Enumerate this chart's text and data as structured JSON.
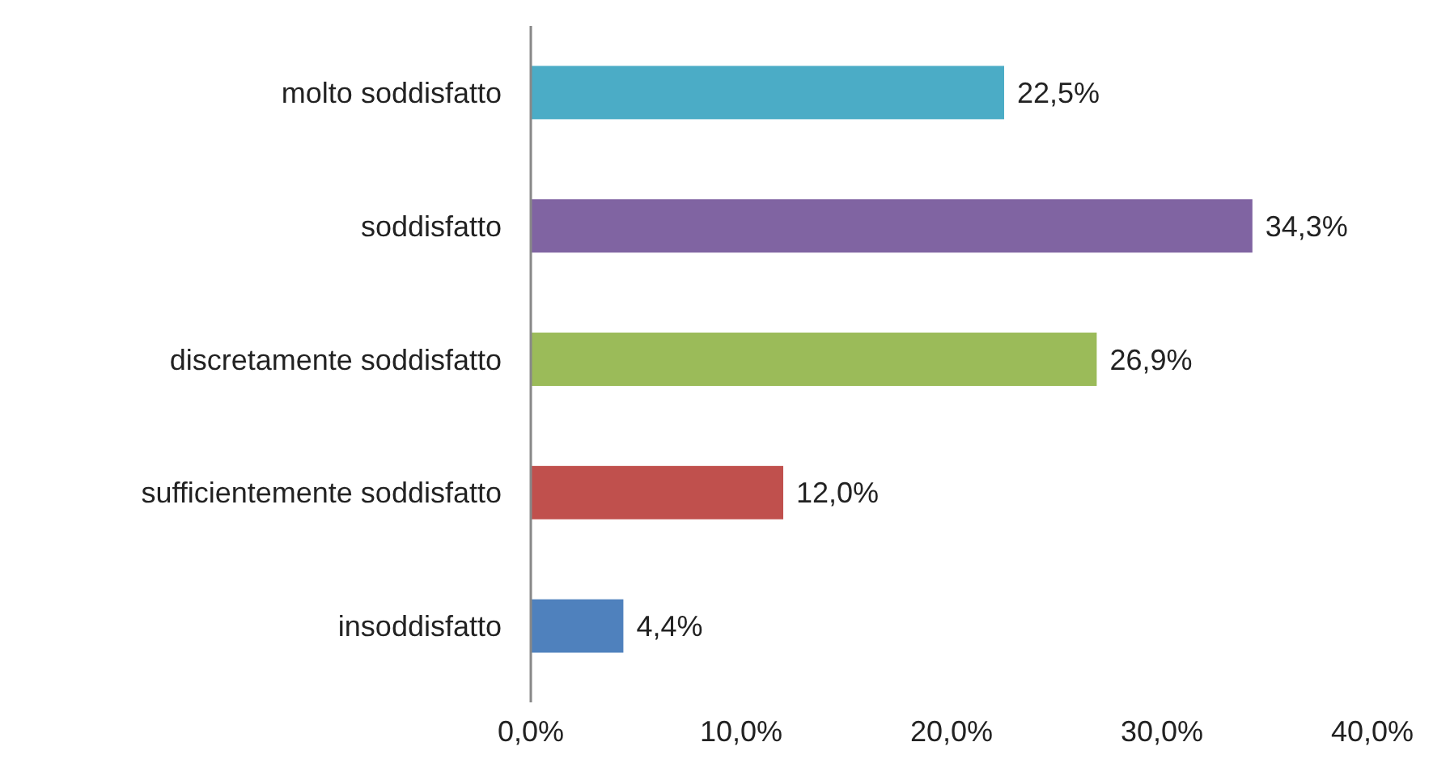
{
  "chart_data": {
    "type": "bar",
    "orientation": "horizontal",
    "categories": [
      "molto soddisfatto",
      "soddisfatto",
      "discretamente soddisfatto",
      "sufficientemente soddisfatto",
      "insoddisfatto"
    ],
    "values": [
      22.5,
      34.3,
      26.9,
      12.0,
      4.4
    ],
    "value_labels": [
      "22,5%",
      "34,3%",
      "26,9%",
      "12,0%",
      "4,4%"
    ],
    "colors": [
      "#4bacc6",
      "#8064a2",
      "#9bbb59",
      "#c0504d",
      "#4f81bd"
    ],
    "xlim": [
      0,
      40
    ],
    "xticks": [
      {
        "value": 0,
        "label": "0,0%"
      },
      {
        "value": 10,
        "label": "10,0%"
      },
      {
        "value": 20,
        "label": "20,0%"
      },
      {
        "value": 30,
        "label": "30,0%"
      },
      {
        "value": 40,
        "label": "40,0%"
      }
    ],
    "grid": false
  }
}
